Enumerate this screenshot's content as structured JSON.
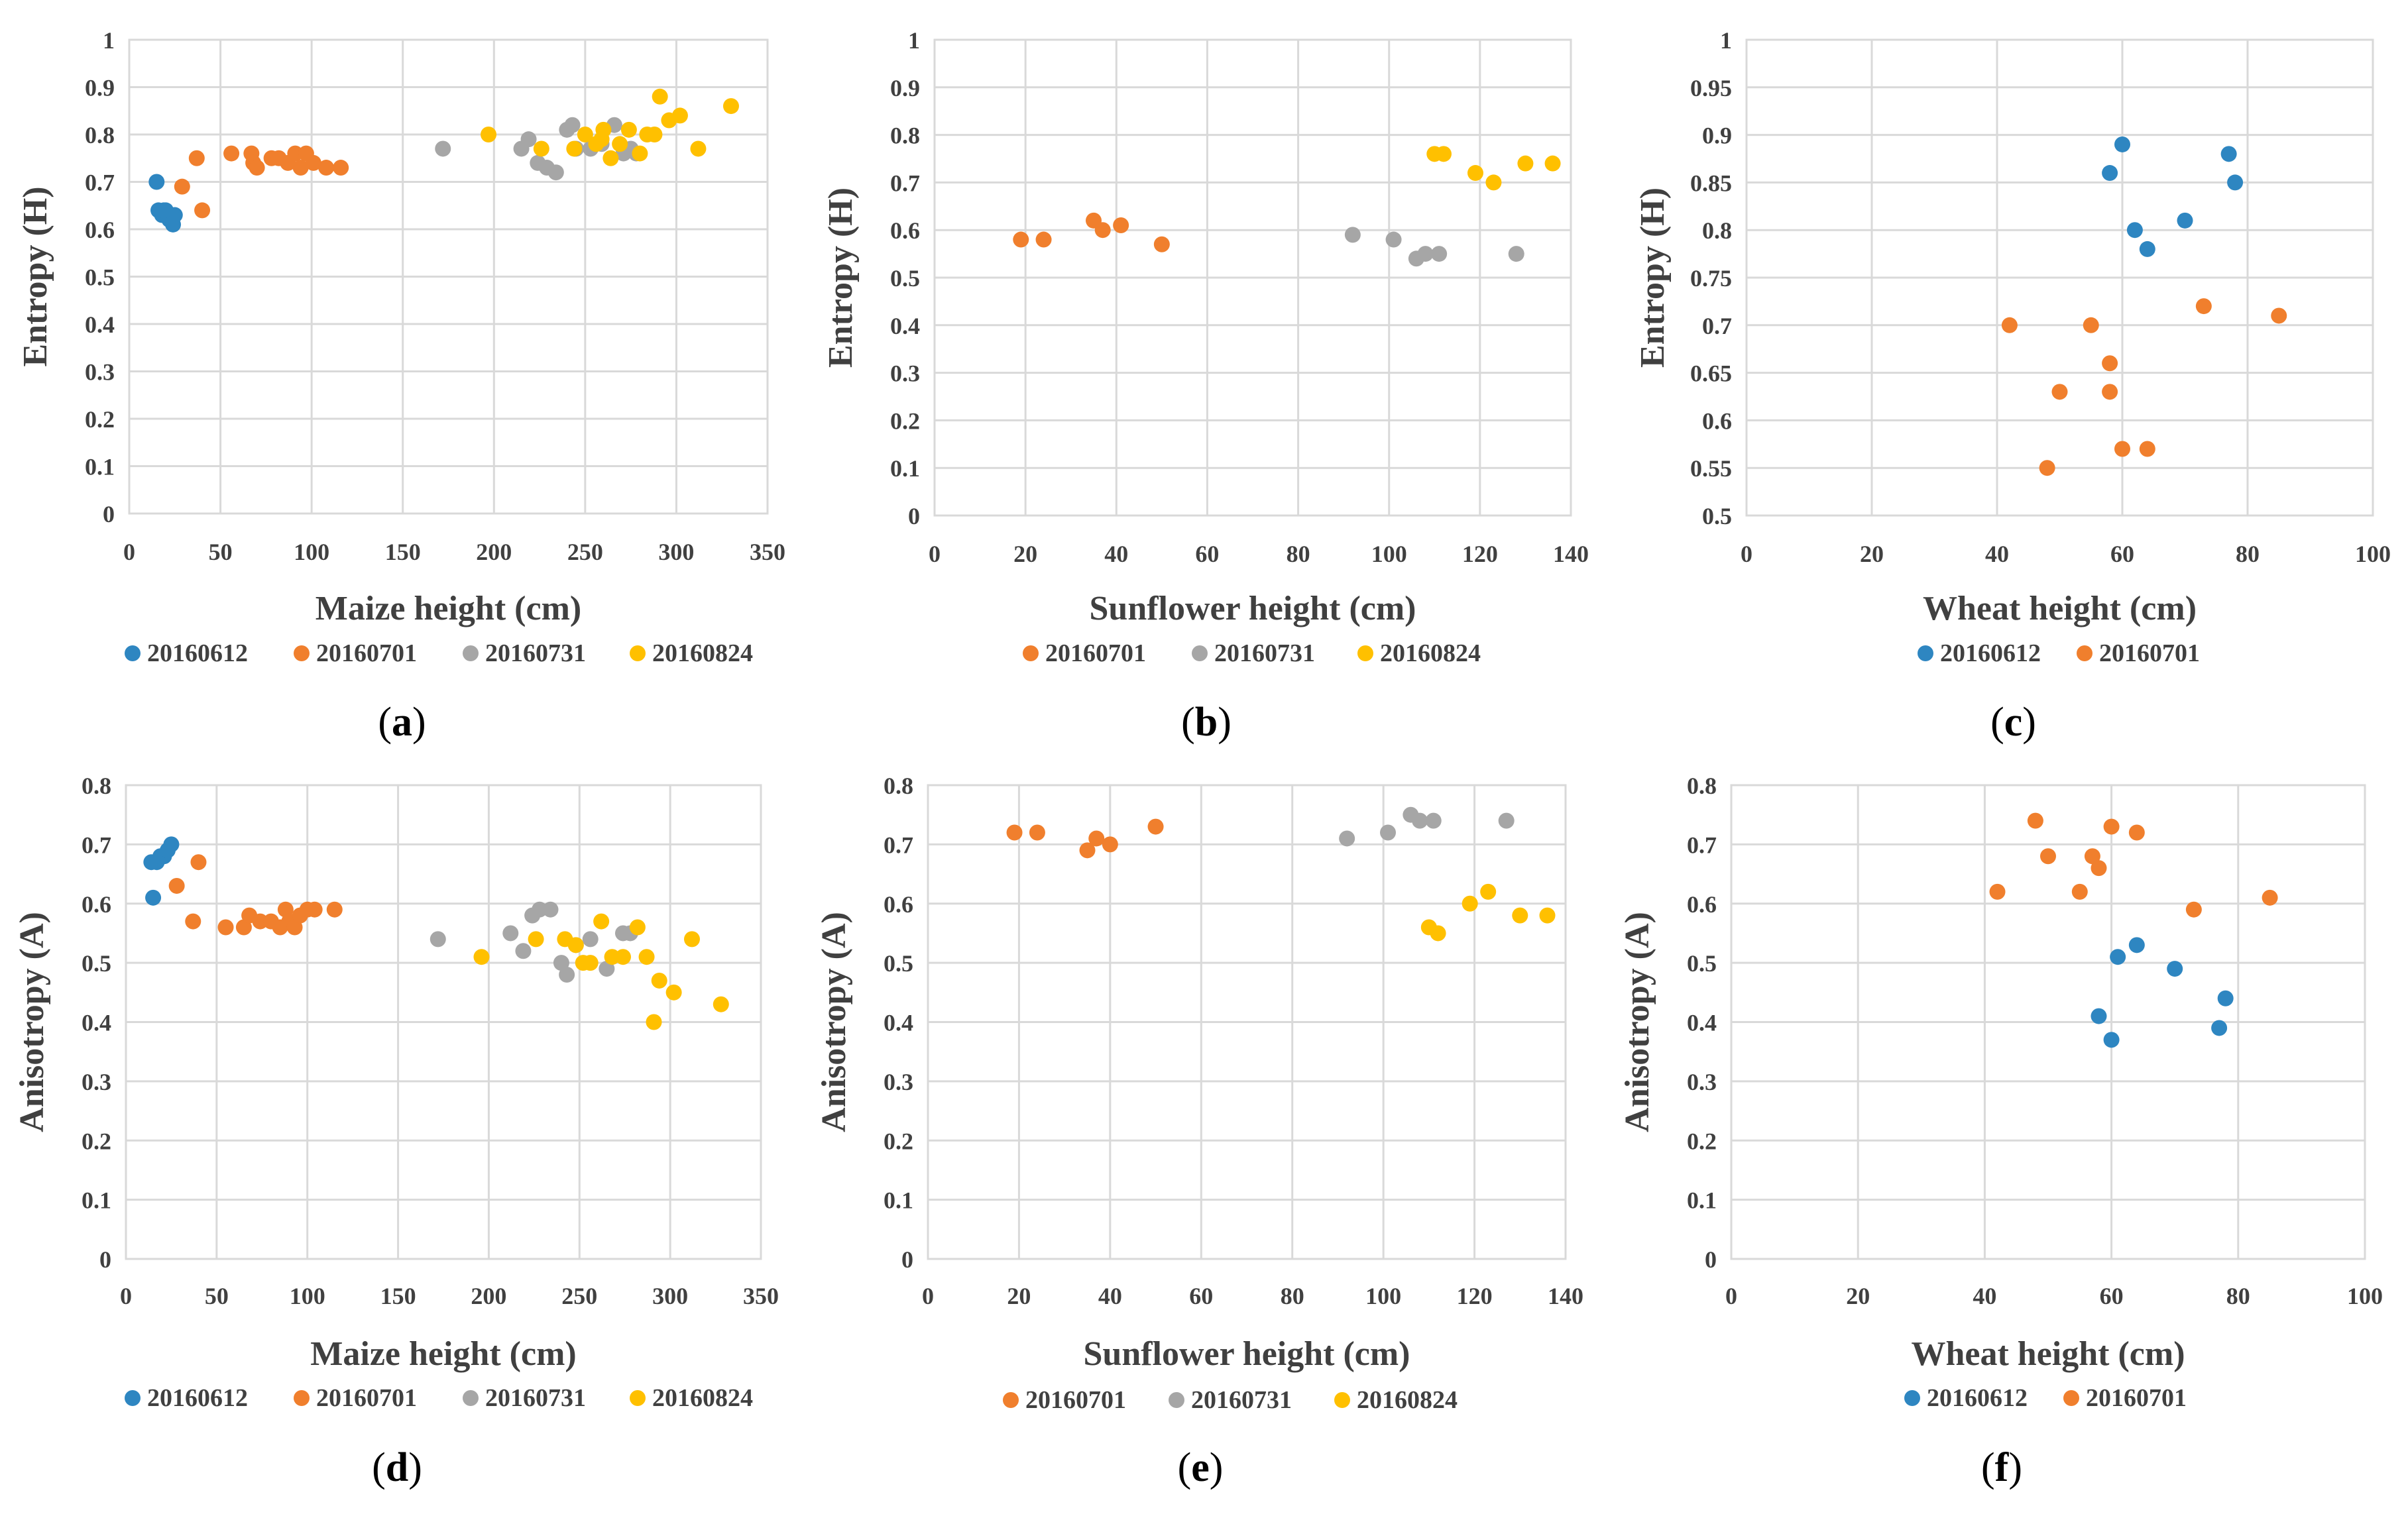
{
  "colors": {
    "20160612": "#2E86C1",
    "20160701": "#F07F2D",
    "20160731": "#A6A6A6",
    "20160824": "#FFC000",
    "grid": "#D9D9D9",
    "text": "#404040"
  },
  "chart_data": [
    {
      "id": "a",
      "caption_letter": "a",
      "type": "scatter",
      "xlabel": "Maize height (cm)",
      "ylabel": "Entropy (H)",
      "xlim": [
        0,
        350
      ],
      "ylim": [
        0,
        1
      ],
      "xticks": [
        0,
        50,
        100,
        150,
        200,
        250,
        300,
        350
      ],
      "xtick_labels": [
        "0",
        "50",
        "100",
        "150",
        "200",
        "250",
        "300",
        "350"
      ],
      "yticks": [
        0,
        0.1,
        0.2,
        0.3,
        0.4,
        0.5,
        0.6,
        0.7,
        0.8,
        0.9,
        1
      ],
      "ytick_labels": [
        "0",
        "0.1",
        "0.2",
        "0.3",
        "0.4",
        "0.5",
        "0.6",
        "0.7",
        "0.8",
        "0.9",
        "1"
      ],
      "series": [
        {
          "name": "20160612",
          "x": [
            15,
            16,
            18,
            20,
            22,
            24,
            25,
            23,
            19
          ],
          "y": [
            0.7,
            0.64,
            0.63,
            0.64,
            0.62,
            0.61,
            0.63,
            0.63,
            0.64
          ]
        },
        {
          "name": "20160701",
          "x": [
            29,
            37,
            40,
            56,
            67,
            68,
            70,
            78,
            82,
            87,
            91,
            94,
            97,
            101,
            108,
            116
          ],
          "y": [
            0.69,
            0.75,
            0.64,
            0.76,
            0.76,
            0.74,
            0.73,
            0.75,
            0.75,
            0.74,
            0.76,
            0.73,
            0.76,
            0.74,
            0.73,
            0.73
          ]
        },
        {
          "name": "20160731",
          "x": [
            172,
            215,
            219,
            224,
            229,
            234,
            240,
            243,
            245,
            253,
            259,
            266,
            271,
            275,
            278
          ],
          "y": [
            0.77,
            0.77,
            0.79,
            0.74,
            0.73,
            0.72,
            0.81,
            0.82,
            0.77,
            0.77,
            0.78,
            0.82,
            0.76,
            0.77,
            0.76
          ]
        },
        {
          "name": "20160824",
          "x": [
            197,
            226,
            244,
            250,
            256,
            260,
            264,
            274,
            280,
            284,
            288,
            291,
            296,
            302,
            312,
            330,
            259,
            269
          ],
          "y": [
            0.8,
            0.77,
            0.77,
            0.8,
            0.78,
            0.81,
            0.75,
            0.81,
            0.76,
            0.8,
            0.8,
            0.88,
            0.83,
            0.84,
            0.77,
            0.86,
            0.79,
            0.78
          ]
        }
      ]
    },
    {
      "id": "b",
      "caption_letter": "b",
      "type": "scatter",
      "xlabel": "Sunflower height (cm)",
      "ylabel": "Entropy (H)",
      "xlim": [
        0,
        140
      ],
      "ylim": [
        0,
        1
      ],
      "xticks": [
        0,
        20,
        40,
        60,
        80,
        100,
        120,
        140
      ],
      "xtick_labels": [
        "0",
        "20",
        "40",
        "60",
        "80",
        "100",
        "120",
        "140"
      ],
      "yticks": [
        0,
        0.1,
        0.2,
        0.3,
        0.4,
        0.5,
        0.6,
        0.7,
        0.8,
        0.9,
        1
      ],
      "ytick_labels": [
        "0",
        "0.1",
        "0.2",
        "0.3",
        "0.4",
        "0.5",
        "0.6",
        "0.7",
        "0.8",
        "0.9",
        "1"
      ],
      "series": [
        {
          "name": "20160701",
          "x": [
            19,
            24,
            35,
            37,
            41,
            50
          ],
          "y": [
            0.58,
            0.58,
            0.62,
            0.6,
            0.61,
            0.57
          ]
        },
        {
          "name": "20160731",
          "x": [
            92,
            101,
            106,
            108,
            111,
            128
          ],
          "y": [
            0.59,
            0.58,
            0.54,
            0.55,
            0.55,
            0.55
          ]
        },
        {
          "name": "20160824",
          "x": [
            110,
            112,
            119,
            123,
            130,
            136
          ],
          "y": [
            0.76,
            0.76,
            0.72,
            0.7,
            0.74,
            0.74
          ]
        }
      ]
    },
    {
      "id": "c",
      "caption_letter": "c",
      "type": "scatter",
      "xlabel": "Wheat height (cm)",
      "ylabel": "Entropy (H)",
      "xlim": [
        0,
        100
      ],
      "ylim": [
        0.5,
        1
      ],
      "xticks": [
        0,
        20,
        40,
        60,
        80,
        100
      ],
      "xtick_labels": [
        "0",
        "20",
        "40",
        "60",
        "80",
        "100"
      ],
      "yticks": [
        0.5,
        0.55,
        0.6,
        0.65,
        0.7,
        0.75,
        0.8,
        0.85,
        0.9,
        0.95,
        1
      ],
      "ytick_labels": [
        "0.5",
        "0.55",
        "0.6",
        "0.65",
        "0.7",
        "0.75",
        "0.8",
        "0.85",
        "0.9",
        "0.95",
        "1"
      ],
      "series": [
        {
          "name": "20160612",
          "x": [
            60,
            58,
            62,
            64,
            70,
            77,
            78
          ],
          "y": [
            0.89,
            0.86,
            0.8,
            0.78,
            0.81,
            0.88,
            0.85
          ]
        },
        {
          "name": "20160701",
          "x": [
            42,
            48,
            50,
            55,
            58,
            58,
            60,
            64,
            73,
            85
          ],
          "y": [
            0.7,
            0.55,
            0.63,
            0.7,
            0.66,
            0.63,
            0.57,
            0.57,
            0.72,
            0.71
          ]
        }
      ]
    },
    {
      "id": "d",
      "caption_letter": "d",
      "type": "scatter",
      "xlabel": "Maize height (cm)",
      "ylabel": "Anisotropy (A)",
      "xlim": [
        0,
        350
      ],
      "ylim": [
        0,
        0.8
      ],
      "xticks": [
        0,
        50,
        100,
        150,
        200,
        250,
        300,
        350
      ],
      "xtick_labels": [
        "0",
        "50",
        "100",
        "150",
        "200",
        "250",
        "300",
        "350"
      ],
      "yticks": [
        0,
        0.1,
        0.2,
        0.3,
        0.4,
        0.5,
        0.6,
        0.7,
        0.8
      ],
      "ytick_labels": [
        "0",
        "0.1",
        "0.2",
        "0.3",
        "0.4",
        "0.5",
        "0.6",
        "0.7",
        "0.8"
      ],
      "series": [
        {
          "name": "20160612",
          "x": [
            14,
            15,
            17,
            19,
            21,
            23,
            25
          ],
          "y": [
            0.67,
            0.61,
            0.67,
            0.68,
            0.68,
            0.69,
            0.7
          ]
        },
        {
          "name": "20160701",
          "x": [
            28,
            37,
            40,
            55,
            65,
            68,
            74,
            80,
            85,
            88,
            90,
            93,
            96,
            100,
            104,
            115
          ],
          "y": [
            0.63,
            0.57,
            0.67,
            0.56,
            0.56,
            0.58,
            0.57,
            0.57,
            0.56,
            0.59,
            0.57,
            0.56,
            0.58,
            0.59,
            0.59,
            0.59
          ]
        },
        {
          "name": "20160731",
          "x": [
            172,
            212,
            219,
            224,
            228,
            234,
            240,
            243,
            248,
            256,
            265,
            274,
            278
          ],
          "y": [
            0.54,
            0.55,
            0.52,
            0.58,
            0.59,
            0.59,
            0.5,
            0.48,
            0.53,
            0.54,
            0.49,
            0.55,
            0.55
          ]
        },
        {
          "name": "20160824",
          "x": [
            196,
            226,
            242,
            248,
            252,
            256,
            262,
            268,
            274,
            282,
            287,
            291,
            294,
            302,
            312,
            328
          ],
          "y": [
            0.51,
            0.54,
            0.54,
            0.53,
            0.5,
            0.5,
            0.57,
            0.51,
            0.51,
            0.56,
            0.51,
            0.4,
            0.47,
            0.45,
            0.54,
            0.43
          ]
        }
      ]
    },
    {
      "id": "e",
      "caption_letter": "e",
      "type": "scatter",
      "xlabel": "Sunflower height (cm)",
      "ylabel": "Anisotropy (A)",
      "xlim": [
        0,
        140
      ],
      "ylim": [
        0,
        0.8
      ],
      "xticks": [
        0,
        20,
        40,
        60,
        80,
        100,
        120,
        140
      ],
      "xtick_labels": [
        "0",
        "20",
        "40",
        "60",
        "80",
        "100",
        "120",
        "140"
      ],
      "yticks": [
        0,
        0.1,
        0.2,
        0.3,
        0.4,
        0.5,
        0.6,
        0.7,
        0.8
      ],
      "ytick_labels": [
        "0",
        "0.1",
        "0.2",
        "0.3",
        "0.4",
        "0.5",
        "0.6",
        "0.7",
        "0.8"
      ],
      "series": [
        {
          "name": "20160701",
          "x": [
            19,
            24,
            35,
            37,
            40,
            50
          ],
          "y": [
            0.72,
            0.72,
            0.69,
            0.71,
            0.7,
            0.73
          ]
        },
        {
          "name": "20160731",
          "x": [
            92,
            101,
            106,
            108,
            111,
            127
          ],
          "y": [
            0.71,
            0.72,
            0.75,
            0.74,
            0.74,
            0.74
          ]
        },
        {
          "name": "20160824",
          "x": [
            110,
            112,
            119,
            123,
            130,
            136
          ],
          "y": [
            0.56,
            0.55,
            0.6,
            0.62,
            0.58,
            0.58
          ]
        }
      ]
    },
    {
      "id": "f",
      "caption_letter": "f",
      "type": "scatter",
      "xlabel": "Wheat height (cm)",
      "ylabel": "Anisotropy (A)",
      "xlim": [
        0,
        100
      ],
      "ylim": [
        0,
        0.8
      ],
      "xticks": [
        0,
        20,
        40,
        60,
        80,
        100
      ],
      "xtick_labels": [
        "0",
        "20",
        "40",
        "60",
        "80",
        "100"
      ],
      "yticks": [
        0,
        0.1,
        0.2,
        0.3,
        0.4,
        0.5,
        0.6,
        0.7,
        0.8
      ],
      "ytick_labels": [
        "0",
        "0.1",
        "0.2",
        "0.3",
        "0.4",
        "0.5",
        "0.6",
        "0.7",
        "0.8"
      ],
      "series": [
        {
          "name": "20160612",
          "x": [
            58,
            60,
            61,
            64,
            70,
            77,
            78
          ],
          "y": [
            0.41,
            0.37,
            0.51,
            0.53,
            0.49,
            0.39,
            0.44
          ]
        },
        {
          "name": "20160701",
          "x": [
            42,
            48,
            50,
            55,
            57,
            58,
            60,
            64,
            73,
            85
          ],
          "y": [
            0.62,
            0.74,
            0.68,
            0.62,
            0.68,
            0.66,
            0.73,
            0.72,
            0.59,
            0.61
          ]
        }
      ]
    }
  ]
}
